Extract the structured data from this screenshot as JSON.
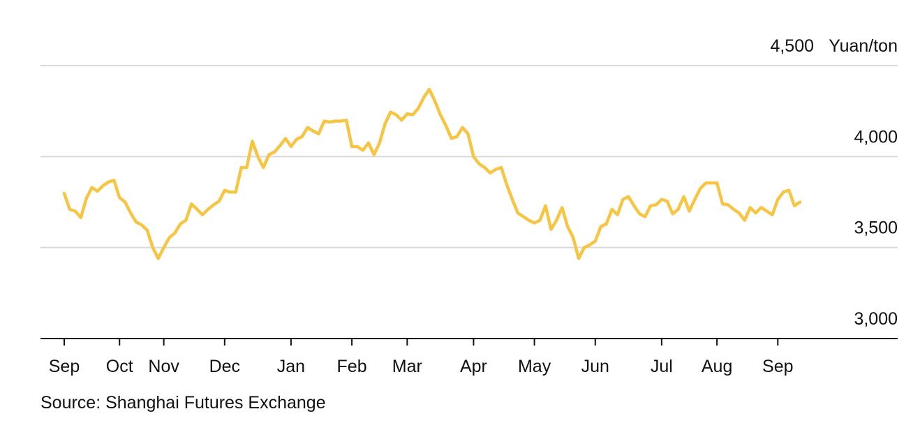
{
  "chart_data": {
    "type": "line",
    "y_unit": "Yuan/ton",
    "source": "Source: Shanghai Futures Exchange",
    "color": "#f6c544",
    "grid": true,
    "ylim": [
      3000,
      4500
    ],
    "yticks": [
      {
        "value": 3000,
        "label": "3,000"
      },
      {
        "value": 3500,
        "label": "3,500"
      },
      {
        "value": 4000,
        "label": "4,000"
      },
      {
        "value": 4500,
        "label": "4,500"
      }
    ],
    "categories": [
      "Sep",
      null,
      null,
      null,
      null,
      null,
      null,
      null,
      null,
      null,
      "Oct",
      null,
      null,
      null,
      null,
      null,
      null,
      null,
      "Nov",
      null,
      null,
      null,
      null,
      null,
      null,
      null,
      null,
      null,
      null,
      "Dec",
      null,
      null,
      null,
      null,
      null,
      null,
      null,
      null,
      null,
      null,
      null,
      "Jan",
      null,
      null,
      null,
      null,
      null,
      null,
      null,
      null,
      null,
      null,
      "Feb",
      null,
      null,
      null,
      null,
      null,
      null,
      null,
      null,
      null,
      "Mar",
      null,
      null,
      null,
      null,
      null,
      null,
      null,
      null,
      null,
      null,
      null,
      "Apr",
      null,
      null,
      null,
      null,
      null,
      null,
      null,
      null,
      null,
      null,
      "May",
      null,
      null,
      null,
      null,
      null,
      null,
      null,
      null,
      null,
      null,
      "Jun",
      null,
      null,
      null,
      null,
      null,
      null,
      null,
      null,
      null,
      null,
      null,
      "Jul",
      null,
      null,
      null,
      null,
      null,
      null,
      null,
      null,
      null,
      "Aug",
      null,
      null,
      null,
      null,
      null,
      null,
      null,
      null,
      null,
      null,
      "Sep",
      null,
      null,
      null,
      null
    ],
    "values": [
      3798,
      3710,
      3700,
      3665,
      3770,
      3830,
      3810,
      3840,
      3860,
      3870,
      3775,
      3750,
      3690,
      3640,
      3625,
      3595,
      3500,
      3440,
      3500,
      3555,
      3580,
      3630,
      3650,
      3740,
      3710,
      3680,
      3710,
      3735,
      3755,
      3815,
      3805,
      3805,
      3940,
      3940,
      4085,
      4000,
      3940,
      4010,
      4025,
      4060,
      4100,
      4055,
      4095,
      4110,
      4160,
      4140,
      4125,
      4195,
      4190,
      4195,
      4195,
      4200,
      4055,
      4055,
      4035,
      4075,
      4010,
      4075,
      4180,
      4245,
      4230,
      4200,
      4235,
      4230,
      4265,
      4325,
      4370,
      4305,
      4230,
      4170,
      4100,
      4110,
      4160,
      4125,
      4000,
      3960,
      3940,
      3910,
      3930,
      3940,
      3845,
      3765,
      3690,
      3670,
      3650,
      3635,
      3650,
      3730,
      3600,
      3650,
      3720,
      3615,
      3555,
      3440,
      3500,
      3515,
      3535,
      3615,
      3630,
      3710,
      3680,
      3765,
      3780,
      3730,
      3685,
      3670,
      3730,
      3735,
      3765,
      3755,
      3685,
      3710,
      3780,
      3700,
      3765,
      3825,
      3855,
      3855,
      3855,
      3740,
      3735,
      3710,
      3690,
      3650,
      3720,
      3690,
      3720,
      3700,
      3680,
      3765,
      3805,
      3815,
      3730,
      3750
    ]
  }
}
